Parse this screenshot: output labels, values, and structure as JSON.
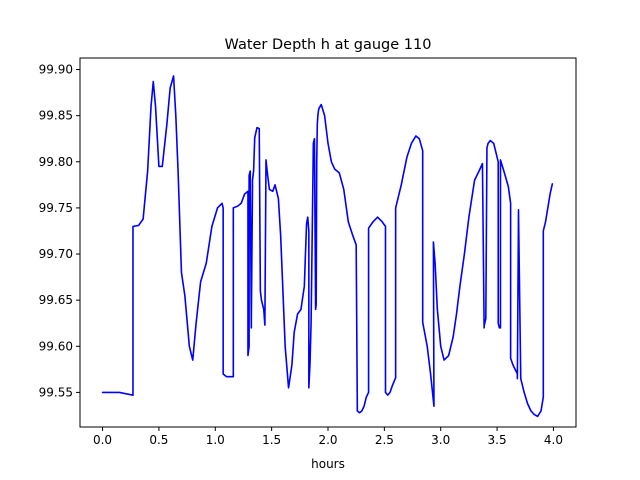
{
  "chart_data": {
    "type": "line",
    "title": "Water Depth h at gauge 110",
    "xlabel": "hours",
    "ylabel": "",
    "xlim": [
      -0.2,
      4.2
    ],
    "ylim": [
      99.5125,
      99.9125
    ],
    "x_ticks": [
      0.0,
      0.5,
      1.0,
      1.5,
      2.0,
      2.5,
      3.0,
      3.5,
      4.0
    ],
    "x_tick_labels": [
      "0.0",
      "0.5",
      "1.0",
      "1.5",
      "2.0",
      "2.5",
      "3.0",
      "3.5",
      "4.0"
    ],
    "y_ticks": [
      99.55,
      99.6,
      99.65,
      99.7,
      99.75,
      99.8,
      99.85,
      99.9
    ],
    "y_tick_labels": [
      "99.55",
      "99.60",
      "99.65",
      "99.70",
      "99.75",
      "99.80",
      "99.85",
      "99.90"
    ],
    "grid": false,
    "series": [
      {
        "name": "",
        "color": "#0000ff",
        "x": [
          0.0,
          0.15,
          0.27,
          0.27,
          0.32,
          0.36,
          0.4,
          0.43,
          0.45,
          0.47,
          0.5,
          0.53,
          0.57,
          0.6,
          0.63,
          0.65,
          0.67,
          0.7,
          0.73,
          0.77,
          0.8,
          0.83,
          0.87,
          0.92,
          0.97,
          1.02,
          1.06,
          1.07,
          1.07,
          1.1,
          1.16,
          1.16,
          1.2,
          1.23,
          1.26,
          1.29,
          1.29,
          1.3,
          1.3,
          1.31,
          1.32,
          1.32,
          1.33,
          1.33,
          1.34,
          1.35,
          1.37,
          1.39,
          1.4,
          1.41,
          1.43,
          1.44,
          1.45,
          1.46,
          1.48,
          1.51,
          1.53,
          1.56,
          1.58,
          1.6,
          1.62,
          1.65,
          1.68,
          1.7,
          1.73,
          1.76,
          1.79,
          1.8,
          1.81,
          1.82,
          1.83,
          1.83,
          1.84,
          1.85,
          1.87,
          1.88,
          1.89,
          1.895,
          1.9,
          1.905,
          1.91,
          1.915,
          1.92,
          1.94,
          1.97,
          2.0,
          2.03,
          2.06,
          2.1,
          2.14,
          2.18,
          2.22,
          2.25,
          2.26,
          2.26,
          2.28,
          2.3,
          2.32,
          2.34,
          2.36,
          2.36,
          2.4,
          2.44,
          2.48,
          2.51,
          2.51,
          2.53,
          2.55,
          2.57,
          2.6,
          2.6,
          2.65,
          2.7,
          2.74,
          2.78,
          2.81,
          2.84,
          2.84,
          2.88,
          2.91,
          2.94,
          2.935,
          2.95,
          2.97,
          3.0,
          3.03,
          3.07,
          3.11,
          3.14,
          3.17,
          3.21,
          3.25,
          3.3,
          3.34,
          3.37,
          3.385,
          3.385,
          3.4,
          3.41,
          3.42,
          3.44,
          3.47,
          3.49,
          3.51,
          3.51,
          3.52,
          3.53,
          3.53,
          3.56,
          3.6,
          3.62,
          3.62,
          3.64,
          3.66,
          3.68,
          3.68,
          3.69,
          3.69,
          3.71,
          3.74,
          3.77,
          3.8,
          3.83,
          3.86,
          3.89,
          3.91,
          3.91,
          3.93,
          3.95,
          3.97,
          3.99
        ],
        "y": [
          99.55,
          99.55,
          99.547,
          99.73,
          99.731,
          99.738,
          99.79,
          99.86,
          99.887,
          99.86,
          99.795,
          99.795,
          99.84,
          99.88,
          99.893,
          99.85,
          99.79,
          99.68,
          99.655,
          99.6,
          99.585,
          99.625,
          99.67,
          99.69,
          99.73,
          99.75,
          99.755,
          99.75,
          99.57,
          99.567,
          99.567,
          99.75,
          99.752,
          99.755,
          99.765,
          99.768,
          99.59,
          99.6,
          99.785,
          99.79,
          99.62,
          99.63,
          99.77,
          99.78,
          99.79,
          99.826,
          99.837,
          99.836,
          99.66,
          99.65,
          99.64,
          99.623,
          99.802,
          99.79,
          99.77,
          99.768,
          99.775,
          99.76,
          99.72,
          99.66,
          99.6,
          99.555,
          99.58,
          99.615,
          99.635,
          99.64,
          99.665,
          99.7,
          99.733,
          99.74,
          99.725,
          99.555,
          99.58,
          99.625,
          99.82,
          99.825,
          99.64,
          99.645,
          99.8,
          99.84,
          99.85,
          99.855,
          99.858,
          99.862,
          99.85,
          99.82,
          99.8,
          99.792,
          99.788,
          99.77,
          99.735,
          99.72,
          99.71,
          99.535,
          99.53,
          99.528,
          99.53,
          99.535,
          99.545,
          99.55,
          99.728,
          99.735,
          99.74,
          99.735,
          99.73,
          99.55,
          99.547,
          99.55,
          99.557,
          99.566,
          99.75,
          99.775,
          99.805,
          99.82,
          99.828,
          99.825,
          99.812,
          99.626,
          99.6,
          99.57,
          99.535,
          99.713,
          99.69,
          99.64,
          99.6,
          99.585,
          99.59,
          99.61,
          99.635,
          99.665,
          99.7,
          99.74,
          99.78,
          99.79,
          99.798,
          99.62,
          99.622,
          99.63,
          99.815,
          99.82,
          99.823,
          99.82,
          99.81,
          99.8,
          99.625,
          99.62,
          99.62,
          99.802,
          99.79,
          99.773,
          99.755,
          99.587,
          99.58,
          99.575,
          99.57,
          99.565,
          99.748,
          99.745,
          99.565,
          99.55,
          99.538,
          99.53,
          99.526,
          99.524,
          99.53,
          99.545,
          99.725,
          99.735,
          99.75,
          99.765,
          99.776
        ]
      }
    ]
  }
}
